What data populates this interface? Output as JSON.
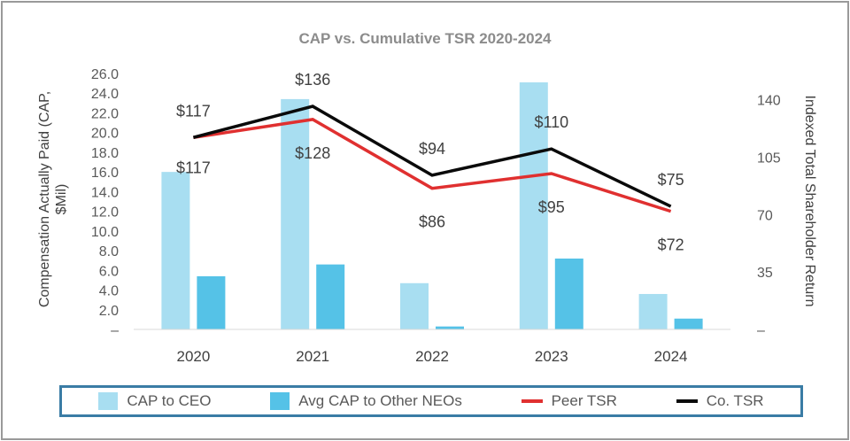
{
  "chart_data": {
    "type": "bar",
    "title": "CAP vs. Cumulative TSR 2020-2024",
    "categories": [
      "2020",
      "2021",
      "2022",
      "2023",
      "2024"
    ],
    "ylabel_left_line1": "Compensation Actually Paid (CAP,",
    "ylabel_left_line2": "$Mil)",
    "ylabel_right": "Indexed Total Shareholder Return",
    "y_left": {
      "min": 0,
      "max": 26,
      "step": 2,
      "ticks": [
        "–",
        "2.0",
        "4.0",
        "6.0",
        "8.0",
        "10.0",
        "12.0",
        "14.0",
        "16.0",
        "18.0",
        "20.0",
        "22.0",
        "24.0",
        "26.0"
      ]
    },
    "y_right": {
      "min": 0,
      "max": 156,
      "ticks": [
        "–",
        "35",
        "70",
        "105",
        "140"
      ],
      "tick_values": [
        0,
        35,
        70,
        105,
        140
      ]
    },
    "bar_series": [
      {
        "name": "CAP to CEO",
        "color": "#a8def1",
        "values": [
          16.0,
          23.4,
          4.7,
          25.1,
          3.6
        ]
      },
      {
        "name": "Avg CAP to Other NEOs",
        "color": "#55c2e7",
        "values": [
          5.4,
          6.6,
          0.3,
          7.2,
          1.1
        ]
      }
    ],
    "line_series": [
      {
        "name": "Peer TSR",
        "color": "#e03030",
        "values": [
          117,
          128,
          86,
          95,
          72
        ],
        "labels": [
          "$117",
          "$128",
          "$86",
          "$95",
          "$72"
        ]
      },
      {
        "name": "Co. TSR",
        "color": "#0a0a0a",
        "values": [
          117,
          136,
          94,
          110,
          75
        ],
        "labels": [
          "$117",
          "$136",
          "$94",
          "$110",
          "$75"
        ]
      }
    ],
    "legend": [
      "CAP to CEO",
      "Avg CAP to Other NEOs",
      "Peer TSR",
      "Co. TSR"
    ]
  }
}
